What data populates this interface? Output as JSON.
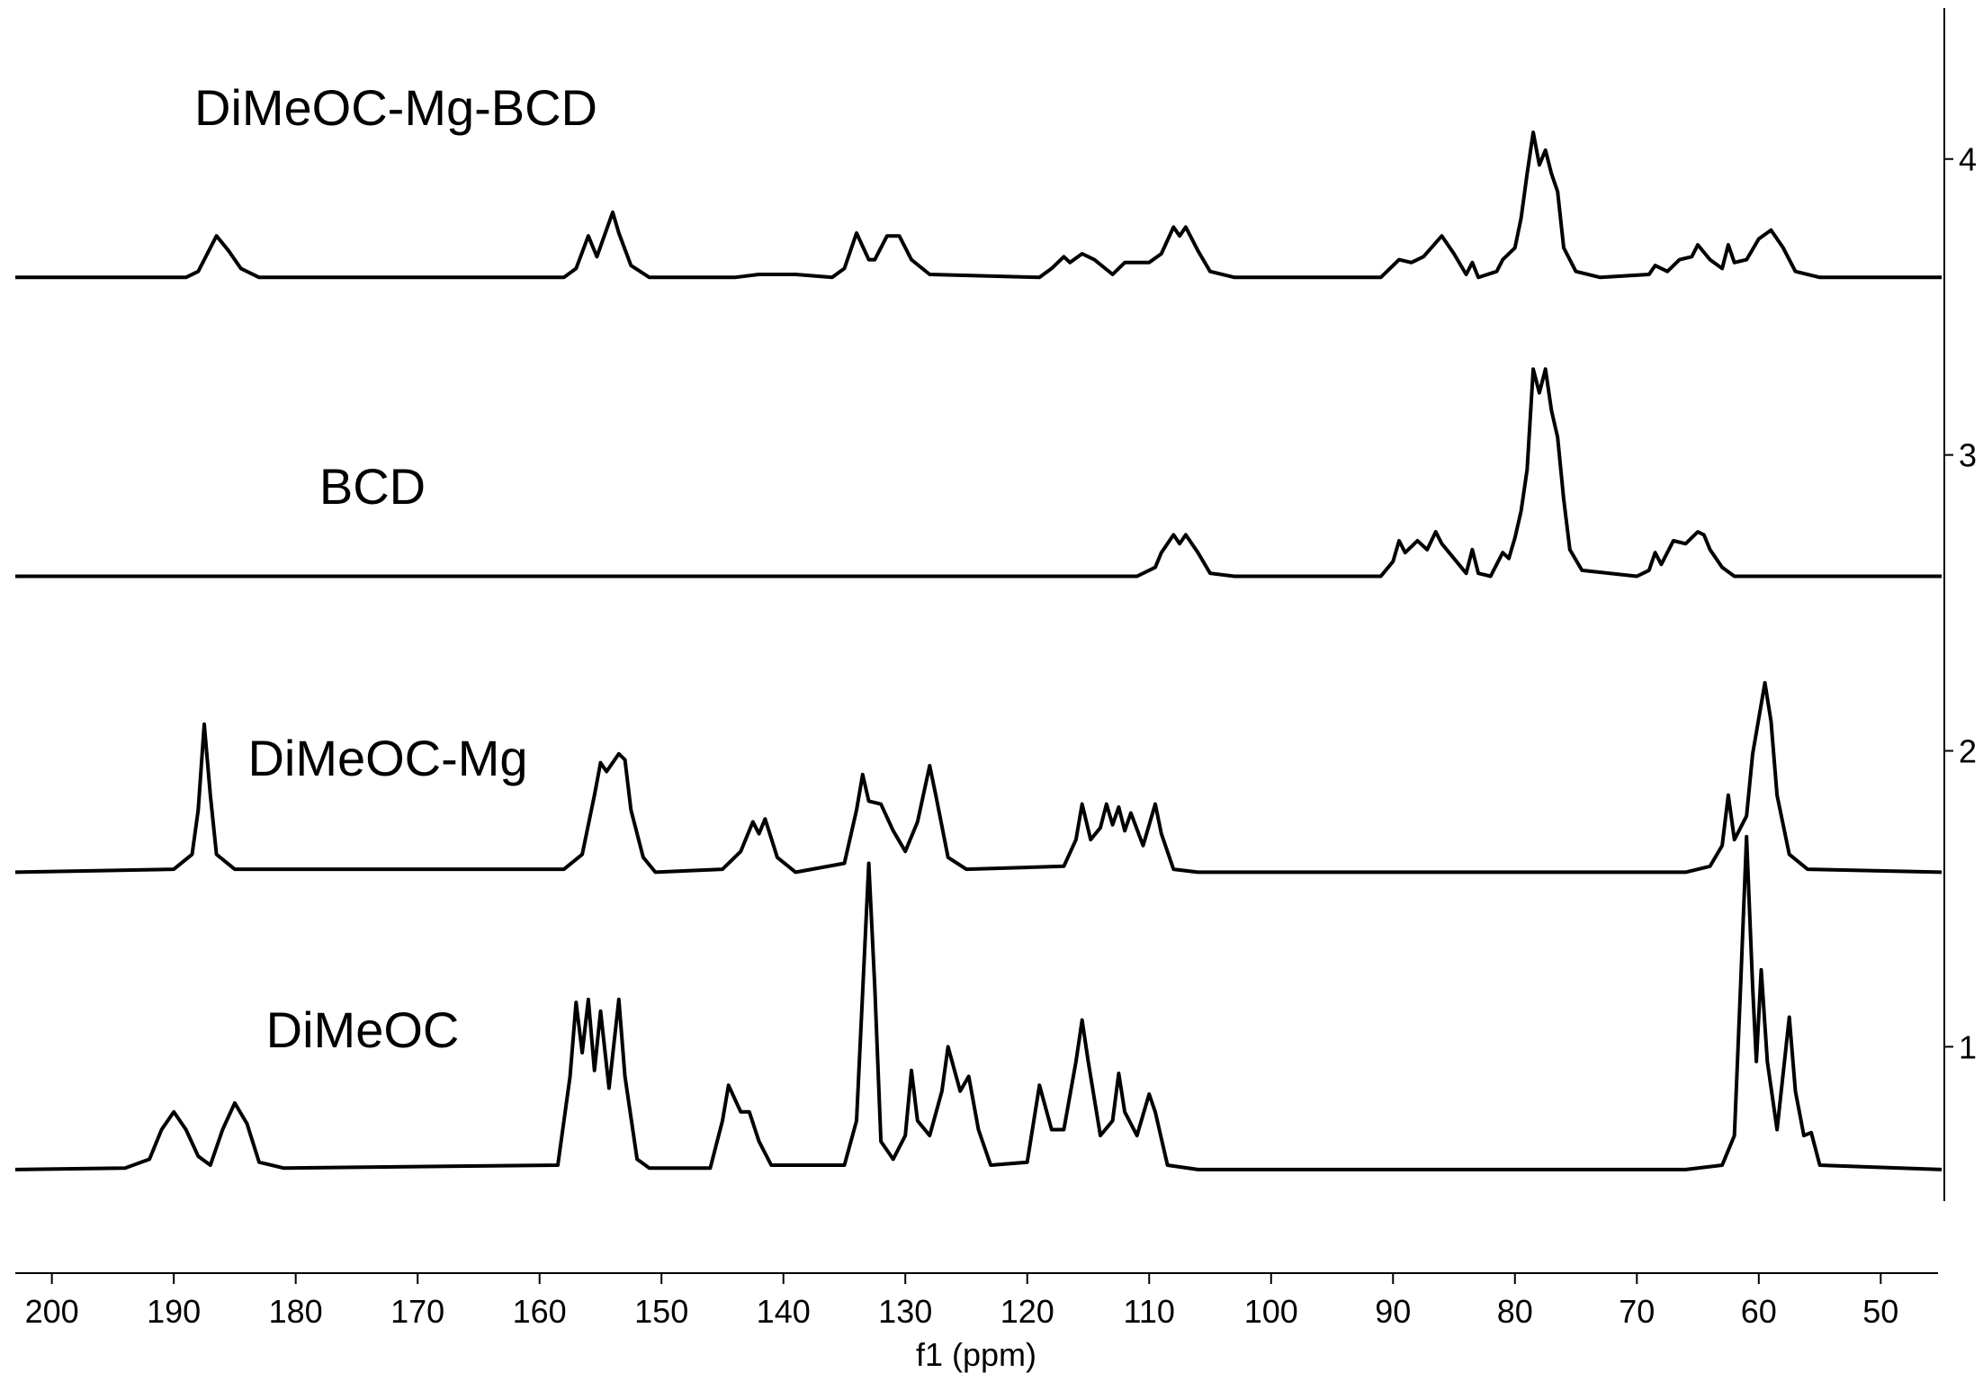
{
  "chart_data": {
    "type": "line",
    "xlabel": "f1 (ppm)",
    "xlim": [
      203,
      45.3
    ],
    "xticks": [
      200,
      190,
      180,
      170,
      160,
      150,
      140,
      130,
      120,
      110,
      100,
      90,
      80,
      70,
      60,
      50
    ],
    "ylim": [
      0.235,
      4.51
    ],
    "yticks": [
      1,
      2,
      3,
      4
    ],
    "series": [
      {
        "name": "DiMeOC",
        "color": "#000000",
        "x": [
          203,
          194,
          192,
          191,
          190,
          189,
          188,
          187,
          186,
          185,
          184,
          183,
          181,
          158.5,
          157.5,
          157,
          156.5,
          156,
          155.5,
          155,
          154.3,
          153.5,
          153,
          152,
          151,
          146,
          145,
          144.5,
          143.5,
          142.8,
          142,
          141,
          135,
          134,
          133,
          132.5,
          132,
          131,
          130,
          129.5,
          129,
          128,
          127,
          126.5,
          125.5,
          124.8,
          124,
          123,
          120,
          119,
          118,
          117,
          116,
          115.5,
          115,
          114,
          113,
          112.5,
          112,
          111,
          110,
          109.5,
          108.5,
          106,
          66,
          63,
          62,
          61.5,
          61,
          60.5,
          60.2,
          59.8,
          59.3,
          58.5,
          57.5,
          57,
          56.3,
          55.7,
          55,
          45
        ],
        "values": [
          0.585,
          0.59,
          0.62,
          0.72,
          0.78,
          0.72,
          0.63,
          0.6,
          0.72,
          0.81,
          0.74,
          0.61,
          0.59,
          0.6,
          0.9,
          1.15,
          0.98,
          1.16,
          0.92,
          1.12,
          0.86,
          1.16,
          0.9,
          0.62,
          0.59,
          0.59,
          0.75,
          0.87,
          0.78,
          0.78,
          0.68,
          0.6,
          0.6,
          0.75,
          1.62,
          1.2,
          0.68,
          0.62,
          0.7,
          0.92,
          0.75,
          0.7,
          0.85,
          1.0,
          0.85,
          0.9,
          0.72,
          0.6,
          0.61,
          0.87,
          0.72,
          0.72,
          0.95,
          1.09,
          0.95,
          0.7,
          0.75,
          0.91,
          0.78,
          0.7,
          0.84,
          0.78,
          0.6,
          0.585,
          0.585,
          0.6,
          0.7,
          1.2,
          1.71,
          1.2,
          0.95,
          1.26,
          0.95,
          0.72,
          1.1,
          0.85,
          0.7,
          0.71,
          0.6,
          0.585
        ]
      },
      {
        "name": "DiMeOC-Mg",
        "color": "#000000",
        "x": [
          203,
          190,
          188.5,
          188,
          187.5,
          187,
          186.5,
          185,
          158,
          156.5,
          155.5,
          155,
          154.5,
          153.5,
          153,
          152.5,
          151.5,
          150.5,
          145,
          143.5,
          142.5,
          142,
          141.5,
          140.5,
          139,
          135,
          134,
          133.5,
          133,
          132,
          131,
          130,
          129,
          128,
          127.5,
          126.5,
          125,
          117,
          116,
          115.5,
          114.8,
          114,
          113.5,
          113,
          112.5,
          112,
          111.5,
          110.5,
          109.5,
          109,
          108,
          106,
          66,
          64,
          63,
          62.5,
          62,
          61,
          60.5,
          59.5,
          59,
          58.5,
          57.5,
          56,
          45
        ],
        "values": [
          1.59,
          1.6,
          1.65,
          1.8,
          2.09,
          1.85,
          1.65,
          1.6,
          1.6,
          1.65,
          1.85,
          1.96,
          1.93,
          1.99,
          1.97,
          1.8,
          1.64,
          1.59,
          1.6,
          1.66,
          1.76,
          1.72,
          1.77,
          1.64,
          1.59,
          1.62,
          1.8,
          1.92,
          1.83,
          1.82,
          1.73,
          1.66,
          1.76,
          1.95,
          1.85,
          1.64,
          1.6,
          1.61,
          1.7,
          1.82,
          1.7,
          1.74,
          1.82,
          1.75,
          1.81,
          1.73,
          1.79,
          1.68,
          1.82,
          1.72,
          1.6,
          1.59,
          1.59,
          1.61,
          1.68,
          1.85,
          1.7,
          1.78,
          1.99,
          2.23,
          2.1,
          1.85,
          1.65,
          1.6,
          1.59
        ]
      },
      {
        "name": "BCD",
        "color": "#000000",
        "x": [
          203,
          111,
          109.5,
          109,
          108,
          107.5,
          107,
          106,
          105,
          103,
          91,
          90,
          89.5,
          89,
          88,
          87.2,
          86.5,
          86,
          85,
          84,
          83.5,
          83,
          82,
          81,
          80.5,
          80,
          79.5,
          79,
          78.5,
          78,
          77.5,
          77,
          76.5,
          76,
          75.5,
          74.5,
          70,
          69,
          68.5,
          68,
          67,
          66,
          65,
          64.5,
          64,
          63,
          62,
          45
        ],
        "values": [
          2.59,
          2.59,
          2.62,
          2.67,
          2.73,
          2.7,
          2.73,
          2.67,
          2.6,
          2.59,
          2.59,
          2.64,
          2.71,
          2.67,
          2.71,
          2.68,
          2.74,
          2.7,
          2.65,
          2.6,
          2.68,
          2.6,
          2.59,
          2.67,
          2.65,
          2.72,
          2.81,
          2.95,
          3.29,
          3.21,
          3.29,
          3.15,
          3.06,
          2.85,
          2.68,
          2.61,
          2.59,
          2.61,
          2.67,
          2.63,
          2.71,
          2.7,
          2.74,
          2.73,
          2.68,
          2.62,
          2.59,
          2.59
        ]
      },
      {
        "name": "DiMeOC-Mg-BCD",
        "color": "#000000",
        "x": [
          203,
          189,
          188,
          187,
          186.5,
          185.5,
          184.5,
          183,
          158,
          157,
          156,
          155.3,
          154,
          153.5,
          152.5,
          151,
          144,
          142,
          139,
          136,
          135,
          134,
          133,
          132.5,
          131.5,
          130.5,
          129.5,
          128,
          119,
          118,
          117,
          116.5,
          115.5,
          114.5,
          113,
          112,
          110,
          109,
          108,
          107.5,
          107,
          106,
          105,
          103,
          91,
          89.5,
          88.5,
          87.5,
          86,
          85,
          84,
          83.5,
          83,
          81.5,
          81,
          80,
          79.5,
          79,
          78.5,
          78,
          77.5,
          77,
          76.5,
          76,
          75,
          73,
          69,
          68.5,
          67.5,
          66.5,
          65.5,
          65,
          64,
          63,
          62.5,
          62,
          61,
          60,
          59,
          58,
          57,
          55,
          45
        ],
        "values": [
          3.6,
          3.6,
          3.62,
          3.7,
          3.74,
          3.69,
          3.63,
          3.6,
          3.6,
          3.63,
          3.74,
          3.67,
          3.82,
          3.75,
          3.64,
          3.6,
          3.6,
          3.61,
          3.61,
          3.6,
          3.63,
          3.75,
          3.66,
          3.66,
          3.74,
          3.74,
          3.66,
          3.61,
          3.6,
          3.63,
          3.67,
          3.65,
          3.68,
          3.66,
          3.61,
          3.65,
          3.65,
          3.68,
          3.77,
          3.74,
          3.77,
          3.69,
          3.62,
          3.6,
          3.6,
          3.66,
          3.65,
          3.67,
          3.74,
          3.68,
          3.61,
          3.65,
          3.6,
          3.62,
          3.66,
          3.7,
          3.8,
          3.95,
          4.09,
          3.98,
          4.03,
          3.95,
          3.89,
          3.7,
          3.62,
          3.6,
          3.61,
          3.64,
          3.62,
          3.66,
          3.67,
          3.71,
          3.66,
          3.63,
          3.71,
          3.65,
          3.66,
          3.73,
          3.76,
          3.7,
          3.62,
          3.6,
          3.6
        ]
      }
    ]
  }
}
